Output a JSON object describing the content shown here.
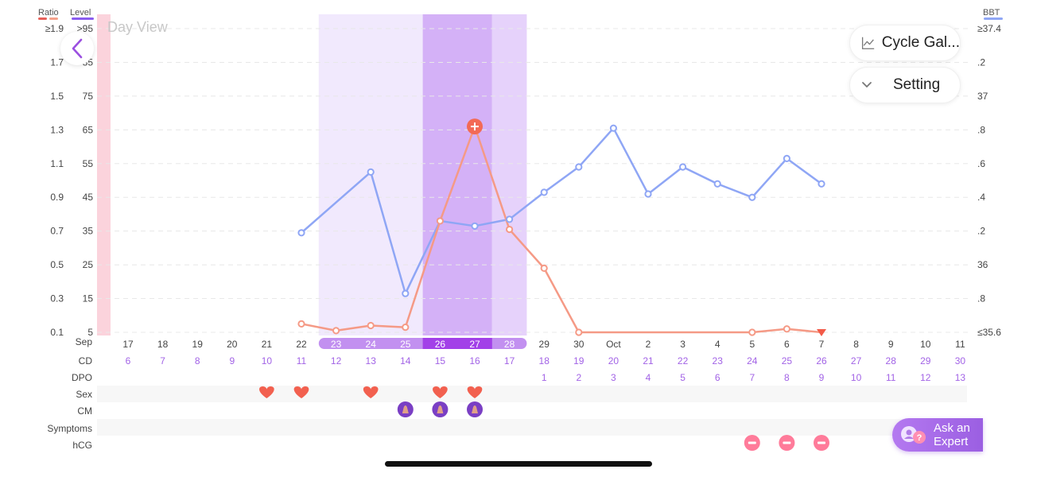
{
  "header": {
    "ratio_label": "Ratio",
    "level_label": "Level",
    "bbt_label": "BBT",
    "view_title": "Day View",
    "ratio_legend_colors": [
      "#e8605a",
      "#f4a08a"
    ],
    "level_legend_color": "#8a5cf0",
    "bbt_legend_color": "#8fa6f5"
  },
  "buttons": {
    "cycle_gallery": "Cycle Gal...",
    "setting": "Setting",
    "ask_expert": "Ask an Expert",
    "back_icon": "chevron-left-icon"
  },
  "axes": {
    "ratio_ticks": [
      "≥1.9",
      "1.7",
      "1.5",
      "1.3",
      "1.1",
      "0.9",
      "0.7",
      "0.5",
      "0.3",
      "0.1"
    ],
    "level_ticks": [
      ">95",
      "85",
      "75",
      "65",
      "55",
      "45",
      "35",
      "25",
      "15",
      "5"
    ],
    "bbt_ticks": [
      "≥37.4",
      ".2",
      "37",
      ".8",
      ".6",
      ".4",
      ".2",
      "36",
      ".8",
      "≤35.6"
    ]
  },
  "rows": {
    "labels": [
      "Sep",
      "CD",
      "DPO",
      "Sex",
      "CM",
      "Symptoms",
      "hCG"
    ]
  },
  "chart_data": {
    "type": "line",
    "x": [
      "17",
      "18",
      "19",
      "20",
      "21",
      "22",
      "23",
      "24",
      "25",
      "26",
      "27",
      "28",
      "29",
      "30",
      "Oct",
      "2",
      "3",
      "4",
      "5",
      "6",
      "7",
      "8",
      "9",
      "10",
      "11"
    ],
    "cd": [
      "6",
      "7",
      "8",
      "9",
      "10",
      "11",
      "12",
      "13",
      "14",
      "15",
      "16",
      "17",
      "18",
      "19",
      "20",
      "21",
      "22",
      "23",
      "24",
      "25",
      "26",
      "27",
      "28",
      "29",
      "30"
    ],
    "dpo": [
      "",
      "",
      "",
      "",
      "",
      "",
      "",
      "",
      "",
      "",
      "",
      "",
      "1",
      "2",
      "3",
      "4",
      "5",
      "6",
      "7",
      "8",
      "9",
      "10",
      "11",
      "12",
      "13"
    ],
    "series": [
      {
        "name": "Ratio",
        "color": "#f59a86",
        "values": [
          null,
          null,
          null,
          null,
          null,
          0.15,
          0.11,
          0.14,
          0.13,
          0.76,
          1.32,
          0.71,
          0.48,
          0.1,
          null,
          null,
          null,
          null,
          0.1,
          0.12,
          0.1,
          null,
          null,
          null,
          null
        ]
      },
      {
        "name": "BBT",
        "color": "#8fa6f5",
        "values": [
          null,
          null,
          null,
          null,
          null,
          36.19,
          null,
          36.55,
          35.83,
          36.26,
          36.23,
          36.27,
          36.43,
          36.58,
          36.81,
          36.42,
          36.58,
          36.48,
          36.4,
          36.63,
          36.48,
          null,
          null,
          null,
          null
        ]
      }
    ],
    "peak_marker_index": 10,
    "end_marker_index": 20,
    "ratio_range": [
      0.1,
      1.9
    ],
    "bbt_range": [
      35.6,
      37.4
    ],
    "bands": [
      {
        "start": 6,
        "end": 8,
        "color": "#f1e9fd",
        "kind": "fertile"
      },
      {
        "start": 9,
        "end": 10,
        "color": "#d4b1f7",
        "kind": "peak"
      },
      {
        "start": 11,
        "end": 11,
        "color": "#e6d2fb",
        "kind": "fertile-high"
      }
    ],
    "period_index": -1,
    "date_highlight_indices": [
      6,
      7,
      8,
      9,
      10,
      11
    ],
    "date_highlight_strong": [
      9,
      10
    ],
    "sex_indices": [
      4,
      5,
      7,
      9,
      10
    ],
    "cm_indices": [
      8,
      9,
      10
    ],
    "hcg_indices": [
      18,
      19,
      20
    ],
    "grid": true
  }
}
